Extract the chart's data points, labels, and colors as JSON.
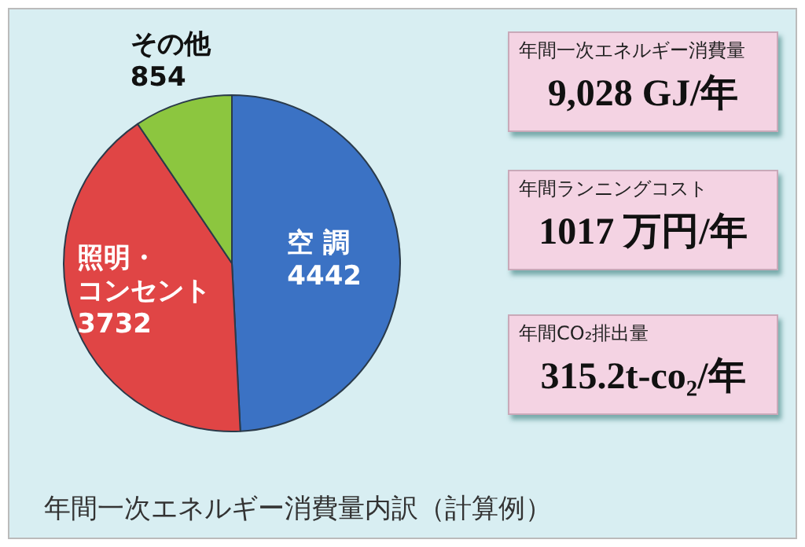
{
  "chart_data": [
    {
      "type": "pie",
      "title": "年間一次エネルギー消費量内訳（計算例）",
      "categories": [
        "空 調",
        "照明・コンセント",
        "その他"
      ],
      "values": [
        4442,
        3732,
        854
      ],
      "colors": [
        "#3b72c4",
        "#e04545",
        "#8cc63f"
      ],
      "data_labels": true,
      "legend": false
    },
    {
      "type": "other",
      "annotations": [
        "年間一次エネルギー消費量",
        "9,028 GJ/年",
        "年間ランニングコスト",
        "1017 万円/年",
        "年間CO₂排出量",
        "315.2t-co₂/年"
      ]
    }
  ]
}
